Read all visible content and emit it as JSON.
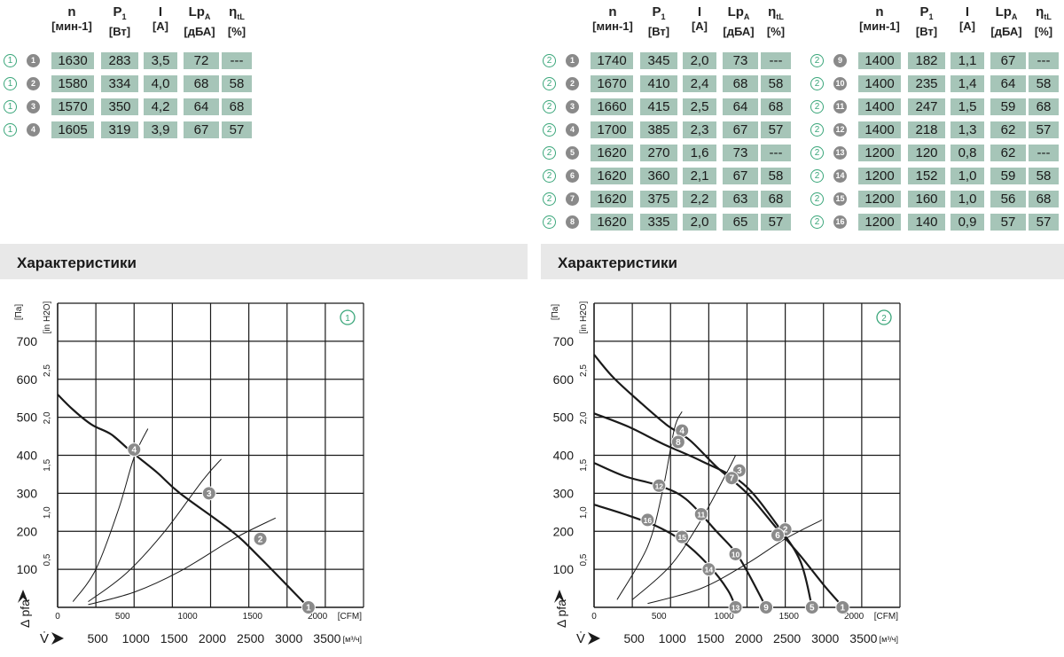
{
  "headers": {
    "n": "n",
    "n_unit": "[мин-1]",
    "p": "P",
    "p_sub": "1",
    "p_unit": "[Вт]",
    "i": "I",
    "i_unit": "[A]",
    "lp": "Lp",
    "lp_sub": "A",
    "lp_unit": "[дБА]",
    "eta": "η",
    "eta_sub": "tL",
    "eta_unit": "[%]"
  },
  "table_left": [
    {
      "circle": "1",
      "dot": "1",
      "values": [
        "1630",
        "283",
        "3,5",
        "72",
        "---"
      ]
    },
    {
      "circle": "1",
      "dot": "2",
      "values": [
        "1580",
        "334",
        "4,0",
        "68",
        "58"
      ]
    },
    {
      "circle": "1",
      "dot": "3",
      "values": [
        "1570",
        "350",
        "4,2",
        "64",
        "68"
      ]
    },
    {
      "circle": "1",
      "dot": "4",
      "values": [
        "1605",
        "319",
        "3,9",
        "67",
        "57"
      ]
    }
  ],
  "table_mid": [
    {
      "circle": "2",
      "dot": "1",
      "values": [
        "1740",
        "345",
        "2,0",
        "73",
        "---"
      ]
    },
    {
      "circle": "2",
      "dot": "2",
      "values": [
        "1670",
        "410",
        "2,4",
        "68",
        "58"
      ]
    },
    {
      "circle": "2",
      "dot": "3",
      "values": [
        "1660",
        "415",
        "2,5",
        "64",
        "68"
      ]
    },
    {
      "circle": "2",
      "dot": "4",
      "values": [
        "1700",
        "385",
        "2,3",
        "67",
        "57"
      ]
    },
    {
      "circle": "2",
      "dot": "5",
      "values": [
        "1620",
        "270",
        "1,6",
        "73",
        "---"
      ]
    },
    {
      "circle": "2",
      "dot": "6",
      "values": [
        "1620",
        "360",
        "2,1",
        "67",
        "58"
      ]
    },
    {
      "circle": "2",
      "dot": "7",
      "values": [
        "1620",
        "375",
        "2,2",
        "63",
        "68"
      ]
    },
    {
      "circle": "2",
      "dot": "8",
      "values": [
        "1620",
        "335",
        "2,0",
        "65",
        "57"
      ]
    }
  ],
  "table_right": [
    {
      "circle": "2",
      "dot": "9",
      "values": [
        "1400",
        "182",
        "1,1",
        "67",
        "---"
      ]
    },
    {
      "circle": "2",
      "dot": "10",
      "values": [
        "1400",
        "235",
        "1,4",
        "64",
        "58"
      ]
    },
    {
      "circle": "2",
      "dot": "11",
      "values": [
        "1400",
        "247",
        "1,5",
        "59",
        "68"
      ]
    },
    {
      "circle": "2",
      "dot": "12",
      "values": [
        "1400",
        "218",
        "1,3",
        "62",
        "57"
      ]
    },
    {
      "circle": "2",
      "dot": "13",
      "values": [
        "1200",
        "120",
        "0,8",
        "62",
        "---"
      ]
    },
    {
      "circle": "2",
      "dot": "14",
      "values": [
        "1200",
        "152",
        "1,0",
        "59",
        "58"
      ]
    },
    {
      "circle": "2",
      "dot": "15",
      "values": [
        "1200",
        "160",
        "1,0",
        "56",
        "68"
      ]
    },
    {
      "circle": "2",
      "dot": "16",
      "values": [
        "1200",
        "140",
        "0,9",
        "57",
        "57"
      ]
    }
  ],
  "sections": {
    "left_title": "Характеристики",
    "right_title": "Характеристики"
  },
  "colors": {
    "cell": "#a6c5b8",
    "accent_green": "#3aa67a",
    "marker_gray": "#8a8a8a"
  },
  "chart_data": [
    {
      "type": "line",
      "badge": "1",
      "ylabel": "Δ pfa",
      "ylabel_unit": "[Па]",
      "ylabel2_unit": "[in H2O]",
      "xlabel": "V̇",
      "xlabel_unit": "[м³/ч]",
      "xlabel2_unit": "[CFM]",
      "xlim": [
        0,
        4000
      ],
      "ylim": [
        0,
        800
      ],
      "x_ticks": [
        500,
        1000,
        1500,
        2000,
        2500,
        3000,
        3500
      ],
      "x_tick_labels": [
        "500",
        "1000",
        "1500",
        "2000",
        "2500",
        "3000",
        "3500"
      ],
      "y_ticks": [
        100,
        200,
        300,
        400,
        500,
        600,
        700
      ],
      "y_tick_labels": [
        "100",
        "200",
        "300",
        "400",
        "500",
        "600",
        "700"
      ],
      "cfm_ticks": [
        0,
        500,
        1000,
        1500,
        2000
      ],
      "cfm_tick_labels": [
        "0",
        "500",
        "1000",
        "1500",
        "2000"
      ],
      "inh2o_ticks": [
        0.5,
        1.0,
        1.5,
        2.0,
        2.5
      ],
      "inh2o_tick_labels": [
        "0,5",
        "1,0",
        "1,5",
        "2,0",
        "2,5"
      ],
      "grid": true,
      "series": [
        {
          "points": [
            [
              0,
              560
            ],
            [
              200,
              520
            ],
            [
              450,
              480
            ],
            [
              700,
              455
            ],
            [
              960,
              410
            ],
            [
              1300,
              355
            ],
            [
              1600,
              300
            ],
            [
              2280,
              200
            ],
            [
              2650,
              130
            ],
            [
              3280,
              0
            ]
          ]
        }
      ],
      "system_curves": [
        {
          "label": "4",
          "points": [
            [
              200,
              15
            ],
            [
              500,
              100
            ],
            [
              800,
              260
            ],
            [
              1000,
              395
            ],
            [
              1180,
              470
            ]
          ]
        },
        {
          "label": "3",
          "points": [
            [
              400,
              15
            ],
            [
              900,
              90
            ],
            [
              1400,
              200
            ],
            [
              1900,
              335
            ],
            [
              2140,
              390
            ]
          ]
        },
        {
          "label": "2",
          "points": [
            [
              400,
              7
            ],
            [
              1000,
              40
            ],
            [
              1600,
              95
            ],
            [
              2300,
              180
            ],
            [
              2850,
              235
            ]
          ]
        }
      ],
      "operating_points": [
        {
          "label": "4",
          "x": 1000,
          "y": 415
        },
        {
          "label": "3",
          "x": 1980,
          "y": 300
        },
        {
          "label": "2",
          "x": 2650,
          "y": 180
        },
        {
          "label": "1",
          "x": 3280,
          "y": 0
        }
      ]
    },
    {
      "type": "line",
      "badge": "2",
      "ylabel": "Δ pfa",
      "ylabel_unit": "[Па]",
      "ylabel2_unit": "[in H2O]",
      "xlabel": "V̇",
      "xlabel_unit": "[м³/ч]",
      "xlabel2_unit": "[CFM]",
      "xlim": [
        0,
        4000
      ],
      "ylim": [
        0,
        800
      ],
      "x_ticks": [
        500,
        1000,
        1500,
        2000,
        2500,
        3000,
        3500
      ],
      "x_tick_labels": [
        "500",
        "1000",
        "1500",
        "2000",
        "2500",
        "3000",
        "3500"
      ],
      "y_ticks": [
        100,
        200,
        300,
        400,
        500,
        600,
        700
      ],
      "y_tick_labels": [
        "100",
        "200",
        "300",
        "400",
        "500",
        "600",
        "700"
      ],
      "cfm_ticks": [
        0,
        500,
        1000,
        1500,
        2000
      ],
      "cfm_tick_labels": [
        "0",
        "500",
        "1000",
        "1500",
        "2000"
      ],
      "inh2o_ticks": [
        0.5,
        1.0,
        1.5,
        2.0,
        2.5
      ],
      "inh2o_tick_labels": [
        "0,5",
        "1,0",
        "1,5",
        "2,0",
        "2,5"
      ],
      "grid": true,
      "series": [
        {
          "points": [
            [
              0,
              665
            ],
            [
              250,
              605
            ],
            [
              600,
              540
            ],
            [
              950,
              480
            ],
            [
              1250,
              440
            ],
            [
              1600,
              370
            ],
            [
              2000,
              300
            ],
            [
              2400,
              205
            ],
            [
              2700,
              135
            ],
            [
              3040,
              50
            ],
            [
              3260,
              0
            ]
          ]
        },
        {
          "points": [
            [
              0,
              510
            ],
            [
              450,
              475
            ],
            [
              900,
              430
            ],
            [
              1400,
              385
            ],
            [
              1950,
              325
            ],
            [
              2400,
              215
            ],
            [
              2700,
              120
            ],
            [
              2850,
              0
            ]
          ]
        },
        {
          "points": [
            [
              0,
              380
            ],
            [
              400,
              345
            ],
            [
              850,
              320
            ],
            [
              1200,
              285
            ],
            [
              1600,
              200
            ],
            [
              1900,
              130
            ],
            [
              2250,
              0
            ]
          ]
        },
        {
          "points": [
            [
              0,
              270
            ],
            [
              400,
              245
            ],
            [
              800,
              215
            ],
            [
              1150,
              175
            ],
            [
              1500,
              110
            ],
            [
              1750,
              45
            ],
            [
              1850,
              0
            ]
          ]
        }
      ],
      "system_curves": [
        {
          "label": "4",
          "points": [
            [
              300,
              20
            ],
            [
              700,
              160
            ],
            [
              900,
              310
            ],
            [
              1050,
              470
            ],
            [
              1150,
              515
            ]
          ]
        },
        {
          "label": "3",
          "points": [
            [
              500,
              20
            ],
            [
              1000,
              110
            ],
            [
              1400,
              230
            ],
            [
              1750,
              360
            ],
            [
              1850,
              400
            ]
          ]
        },
        {
          "label": "2",
          "points": [
            [
              700,
              10
            ],
            [
              1400,
              50
            ],
            [
              2000,
              115
            ],
            [
              2500,
              180
            ],
            [
              2980,
              230
            ]
          ]
        }
      ],
      "operating_points": [
        {
          "label": "1",
          "x": 3250,
          "y": 0
        },
        {
          "label": "2",
          "x": 2500,
          "y": 205
        },
        {
          "label": "3",
          "x": 1900,
          "y": 360
        },
        {
          "label": "4",
          "x": 1150,
          "y": 465
        },
        {
          "label": "5",
          "x": 2850,
          "y": 0
        },
        {
          "label": "6",
          "x": 2400,
          "y": 190
        },
        {
          "label": "7",
          "x": 1800,
          "y": 340
        },
        {
          "label": "8",
          "x": 1100,
          "y": 435
        },
        {
          "label": "9",
          "x": 2250,
          "y": 0
        },
        {
          "label": "10",
          "x": 1850,
          "y": 140
        },
        {
          "label": "11",
          "x": 1400,
          "y": 245
        },
        {
          "label": "12",
          "x": 850,
          "y": 320
        },
        {
          "label": "13",
          "x": 1850,
          "y": 0
        },
        {
          "label": "14",
          "x": 1500,
          "y": 100
        },
        {
          "label": "15",
          "x": 1150,
          "y": 185
        },
        {
          "label": "16",
          "x": 700,
          "y": 230
        }
      ]
    }
  ]
}
